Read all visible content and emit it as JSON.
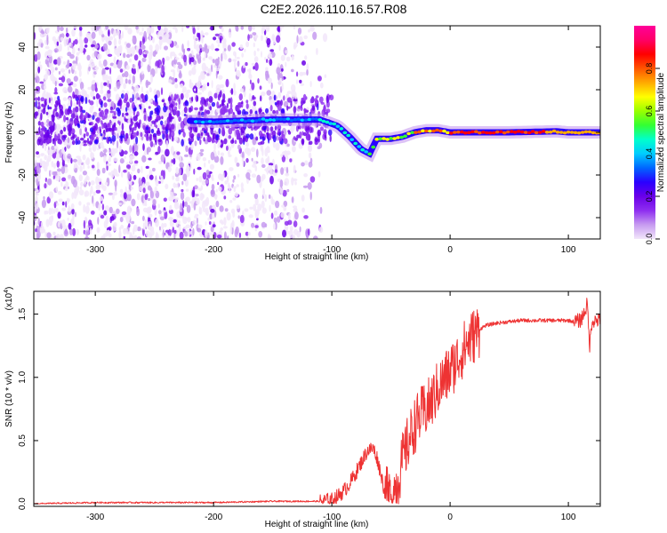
{
  "title": "C2E2.2026.110.16.57.R08",
  "chart_data": [
    {
      "type": "heatmap",
      "panel": "top",
      "xlabel": "Height of straight line (km)",
      "ylabel": "Frequency (Hz)",
      "xlim": [
        -352,
        127
      ],
      "ylim": [
        -50,
        50
      ],
      "xticks": [
        -300,
        -200,
        -100,
        0,
        100
      ],
      "xtick_labels": [
        "-300",
        "-200",
        "-100",
        "0",
        "100"
      ],
      "yticks": [
        -40,
        -20,
        0,
        20,
        40
      ],
      "ytick_labels": [
        "-40",
        "-20",
        "0",
        "20",
        "40"
      ],
      "ridge": {
        "x": [
          -350,
          -300,
          -250,
          -200,
          -150,
          -110,
          -95,
          -85,
          -75,
          -68,
          -62,
          -50,
          -40,
          -30,
          -20,
          -10,
          0,
          50,
          90,
          100,
          127
        ],
        "frequency": [
          8,
          7,
          6,
          5,
          6,
          6,
          3,
          -2,
          -8,
          -10,
          -3,
          -3,
          -2,
          0,
          1,
          1,
          0,
          0,
          0.5,
          0,
          0
        ]
      },
      "colorbar": {
        "label": "Normalized spectral amplitude",
        "range": [
          0,
          1
        ],
        "ticks": [
          0.0,
          0.2,
          0.4,
          0.6,
          0.8
        ],
        "tick_labels": [
          "0.0",
          "0.2",
          "0.4",
          "0.6",
          "0.8"
        ],
        "colors": [
          "#f2e6fa",
          "#c79bf0",
          "#8e2ef0",
          "#6a00e8",
          "#2a00ff",
          "#0066ff",
          "#00ccff",
          "#00ffcc",
          "#33ff33",
          "#99ff00",
          "#ffff00",
          "#ffaa00",
          "#ff5500",
          "#ff0000",
          "#ff0066",
          "#ff0099"
        ]
      },
      "x": [
        -352,
        127
      ],
      "y": [
        -50,
        50
      ]
    },
    {
      "type": "line",
      "panel": "bottom",
      "xlabel": "Height of straight line (km)",
      "ylabel": "SNR (10 * v/v)",
      "ylabel_scale": "(x10",
      "ylabel_exponent": "4",
      "ylabel_scale_close": ")",
      "xlim": [
        -352,
        127
      ],
      "ylim": [
        -0.02,
        1.68
      ],
      "xticks": [
        -300,
        -200,
        -100,
        0,
        100
      ],
      "xtick_labels": [
        "-300",
        "-200",
        "-100",
        "0",
        "100"
      ],
      "yticks": [
        0.0,
        0.5,
        1.0,
        1.5
      ],
      "ytick_labels": [
        "0.0",
        "0.5",
        "1.0",
        "1.5"
      ],
      "color": "#ee3333",
      "x": [
        -352,
        -300,
        -250,
        -200,
        -150,
        -110,
        -100,
        -95,
        -90,
        -85,
        -80,
        -75,
        -70,
        -65,
        -62,
        -58,
        -55,
        -50,
        -45,
        -40,
        -35,
        -30,
        -25,
        -20,
        -15,
        -10,
        -5,
        0,
        5,
        10,
        15,
        20,
        25,
        30,
        40,
        50,
        60,
        70,
        80,
        90,
        100,
        105,
        110,
        113,
        116,
        118,
        120,
        127
      ],
      "y": [
        0.0,
        0.01,
        0.01,
        0.01,
        0.02,
        0.02,
        0.03,
        0.06,
        0.1,
        0.16,
        0.24,
        0.33,
        0.42,
        0.44,
        0.37,
        0.22,
        0.08,
        0.05,
        0.15,
        0.35,
        0.5,
        0.62,
        0.7,
        0.75,
        0.82,
        0.92,
        0.98,
        1.05,
        1.12,
        1.2,
        1.28,
        1.33,
        1.38,
        1.41,
        1.43,
        1.44,
        1.45,
        1.45,
        1.45,
        1.45,
        1.45,
        1.44,
        1.45,
        1.5,
        1.58,
        1.25,
        1.45,
        1.45
      ]
    }
  ]
}
